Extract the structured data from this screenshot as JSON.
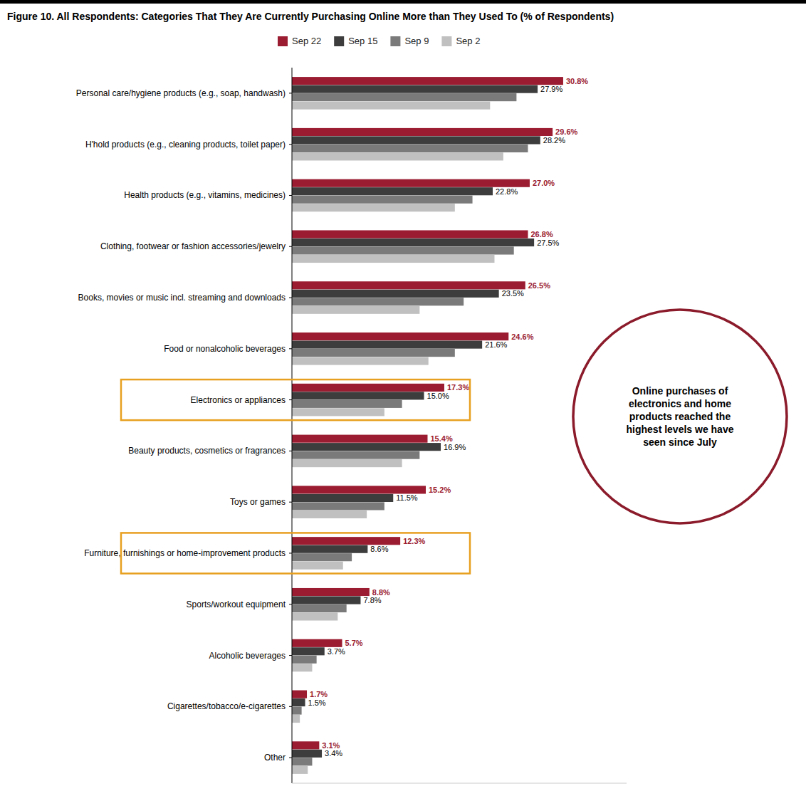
{
  "chart_data": {
    "type": "bar",
    "orientation": "horizontal",
    "title": "Figure 10. All Respondents: Categories That They Are Currently Purchasing Online More than They Used To (% of Respondents)",
    "categories": [
      "Personal care/hygiene products (e.g., soap, handwash)",
      "H'hold products (e.g., cleaning products, toilet paper)",
      "Health products (e.g., vitamins, medicines)",
      "Clothing, footwear or fashion accessories/jewelry",
      "Books, movies or music incl. streaming and downloads",
      "Food or nonalcoholic beverages",
      "Electronics or appliances",
      "Beauty products, cosmetics or fragrances",
      "Toys or games",
      "Furniture, furnishings or home-improvement products",
      "Sports/workout equipment",
      "Alcoholic beverages",
      "Cigarettes/tobacco/e-cigarettes",
      "Other"
    ],
    "series": [
      {
        "name": "Sep 22",
        "color": "#9B1B30",
        "data_labels": true,
        "values": [
          30.8,
          29.6,
          27.0,
          26.8,
          26.5,
          24.6,
          17.3,
          15.4,
          15.2,
          12.3,
          8.8,
          5.7,
          1.7,
          3.1
        ],
        "value_labels": [
          "30.8%",
          "29.6%",
          "27.0%",
          "26.8%",
          "26.5%",
          "24.6%",
          "17.3%",
          "15.4%",
          "15.2%",
          "12.3%",
          "8.8%",
          "5.7%",
          "1.7%",
          "3.1%"
        ]
      },
      {
        "name": "Sep 15",
        "color": "#3D3D3D",
        "data_labels": true,
        "values": [
          27.9,
          28.2,
          22.8,
          27.5,
          23.5,
          21.6,
          15.0,
          16.9,
          11.5,
          8.6,
          7.8,
          3.7,
          1.5,
          3.4
        ],
        "value_labels": [
          "27.9%",
          "28.2%",
          "22.8%",
          "27.5%",
          "23.5%",
          "21.6%",
          "15.0%",
          "16.9%",
          "11.5%",
          "8.6%",
          "7.8%",
          "3.7%",
          "1.5%",
          "3.4%"
        ]
      },
      {
        "name": "Sep 9",
        "color": "#7A7A7A",
        "data_labels": false,
        "values": [
          25.5,
          26.8,
          20.5,
          25.2,
          19.5,
          18.5,
          12.5,
          14.5,
          10.5,
          6.8,
          6.2,
          2.8,
          1.1,
          2.3
        ]
      },
      {
        "name": "Sep 2",
        "color": "#C0C0C0",
        "data_labels": false,
        "values": [
          22.5,
          24.0,
          18.5,
          23.0,
          14.5,
          15.5,
          10.5,
          12.5,
          8.5,
          5.8,
          5.2,
          2.3,
          0.9,
          1.8
        ]
      }
    ],
    "xlim": [
      0,
      38
    ],
    "xticks": [],
    "tick_labels": "y",
    "grid": false,
    "legend": "top",
    "annotations": [
      "Online purchases of\nelectronics and home\nproducts reached the\nhighest levels we have\nseen since July"
    ]
  }
}
